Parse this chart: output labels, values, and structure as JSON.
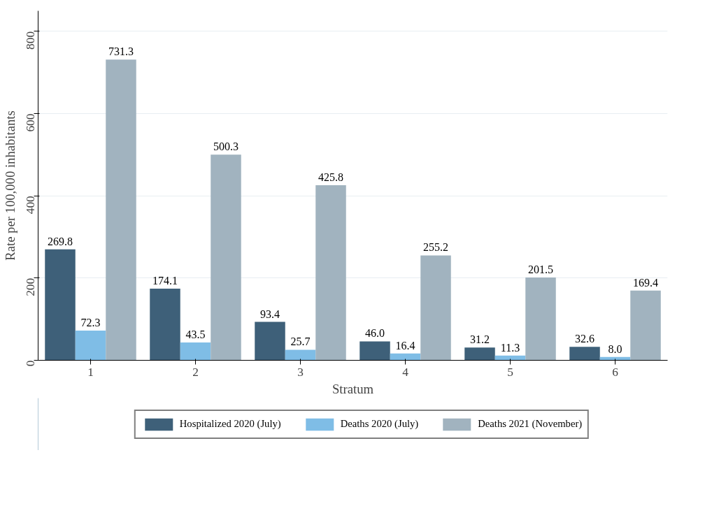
{
  "chart_data": {
    "type": "bar",
    "xlabel": "Stratum",
    "ylabel": "Rate per 100,000 inhabitants",
    "categories": [
      "1",
      "2",
      "3",
      "4",
      "5",
      "6"
    ],
    "series": [
      {
        "name": "Hospitalized 2020 (July)",
        "color": "#3e6079",
        "values": [
          269.8,
          174.1,
          93.4,
          46.0,
          31.2,
          32.6
        ],
        "value_labels": [
          "269.8",
          "174.1",
          "93.4",
          "46.0",
          "31.2",
          "32.6"
        ]
      },
      {
        "name": "Deaths 2020 (July)",
        "color": "#7fbde6",
        "values": [
          72.3,
          43.5,
          25.7,
          16.4,
          11.3,
          8.0
        ],
        "value_labels": [
          "72.3",
          "43.5",
          "25.7",
          "16.4",
          "11.3",
          "8.0"
        ]
      },
      {
        "name": "Deaths 2021 (November)",
        "color": "#a1b3bf",
        "values": [
          731.3,
          500.3,
          425.8,
          255.2,
          201.5,
          169.4
        ],
        "value_labels": [
          "731.3",
          "500.3",
          "425.8",
          "255.2",
          "201.5",
          "169.4"
        ]
      }
    ],
    "ylim": [
      0,
      850
    ],
    "yticks": [
      0,
      200,
      400,
      600,
      800
    ],
    "grid": "y",
    "legend": "bottom"
  }
}
